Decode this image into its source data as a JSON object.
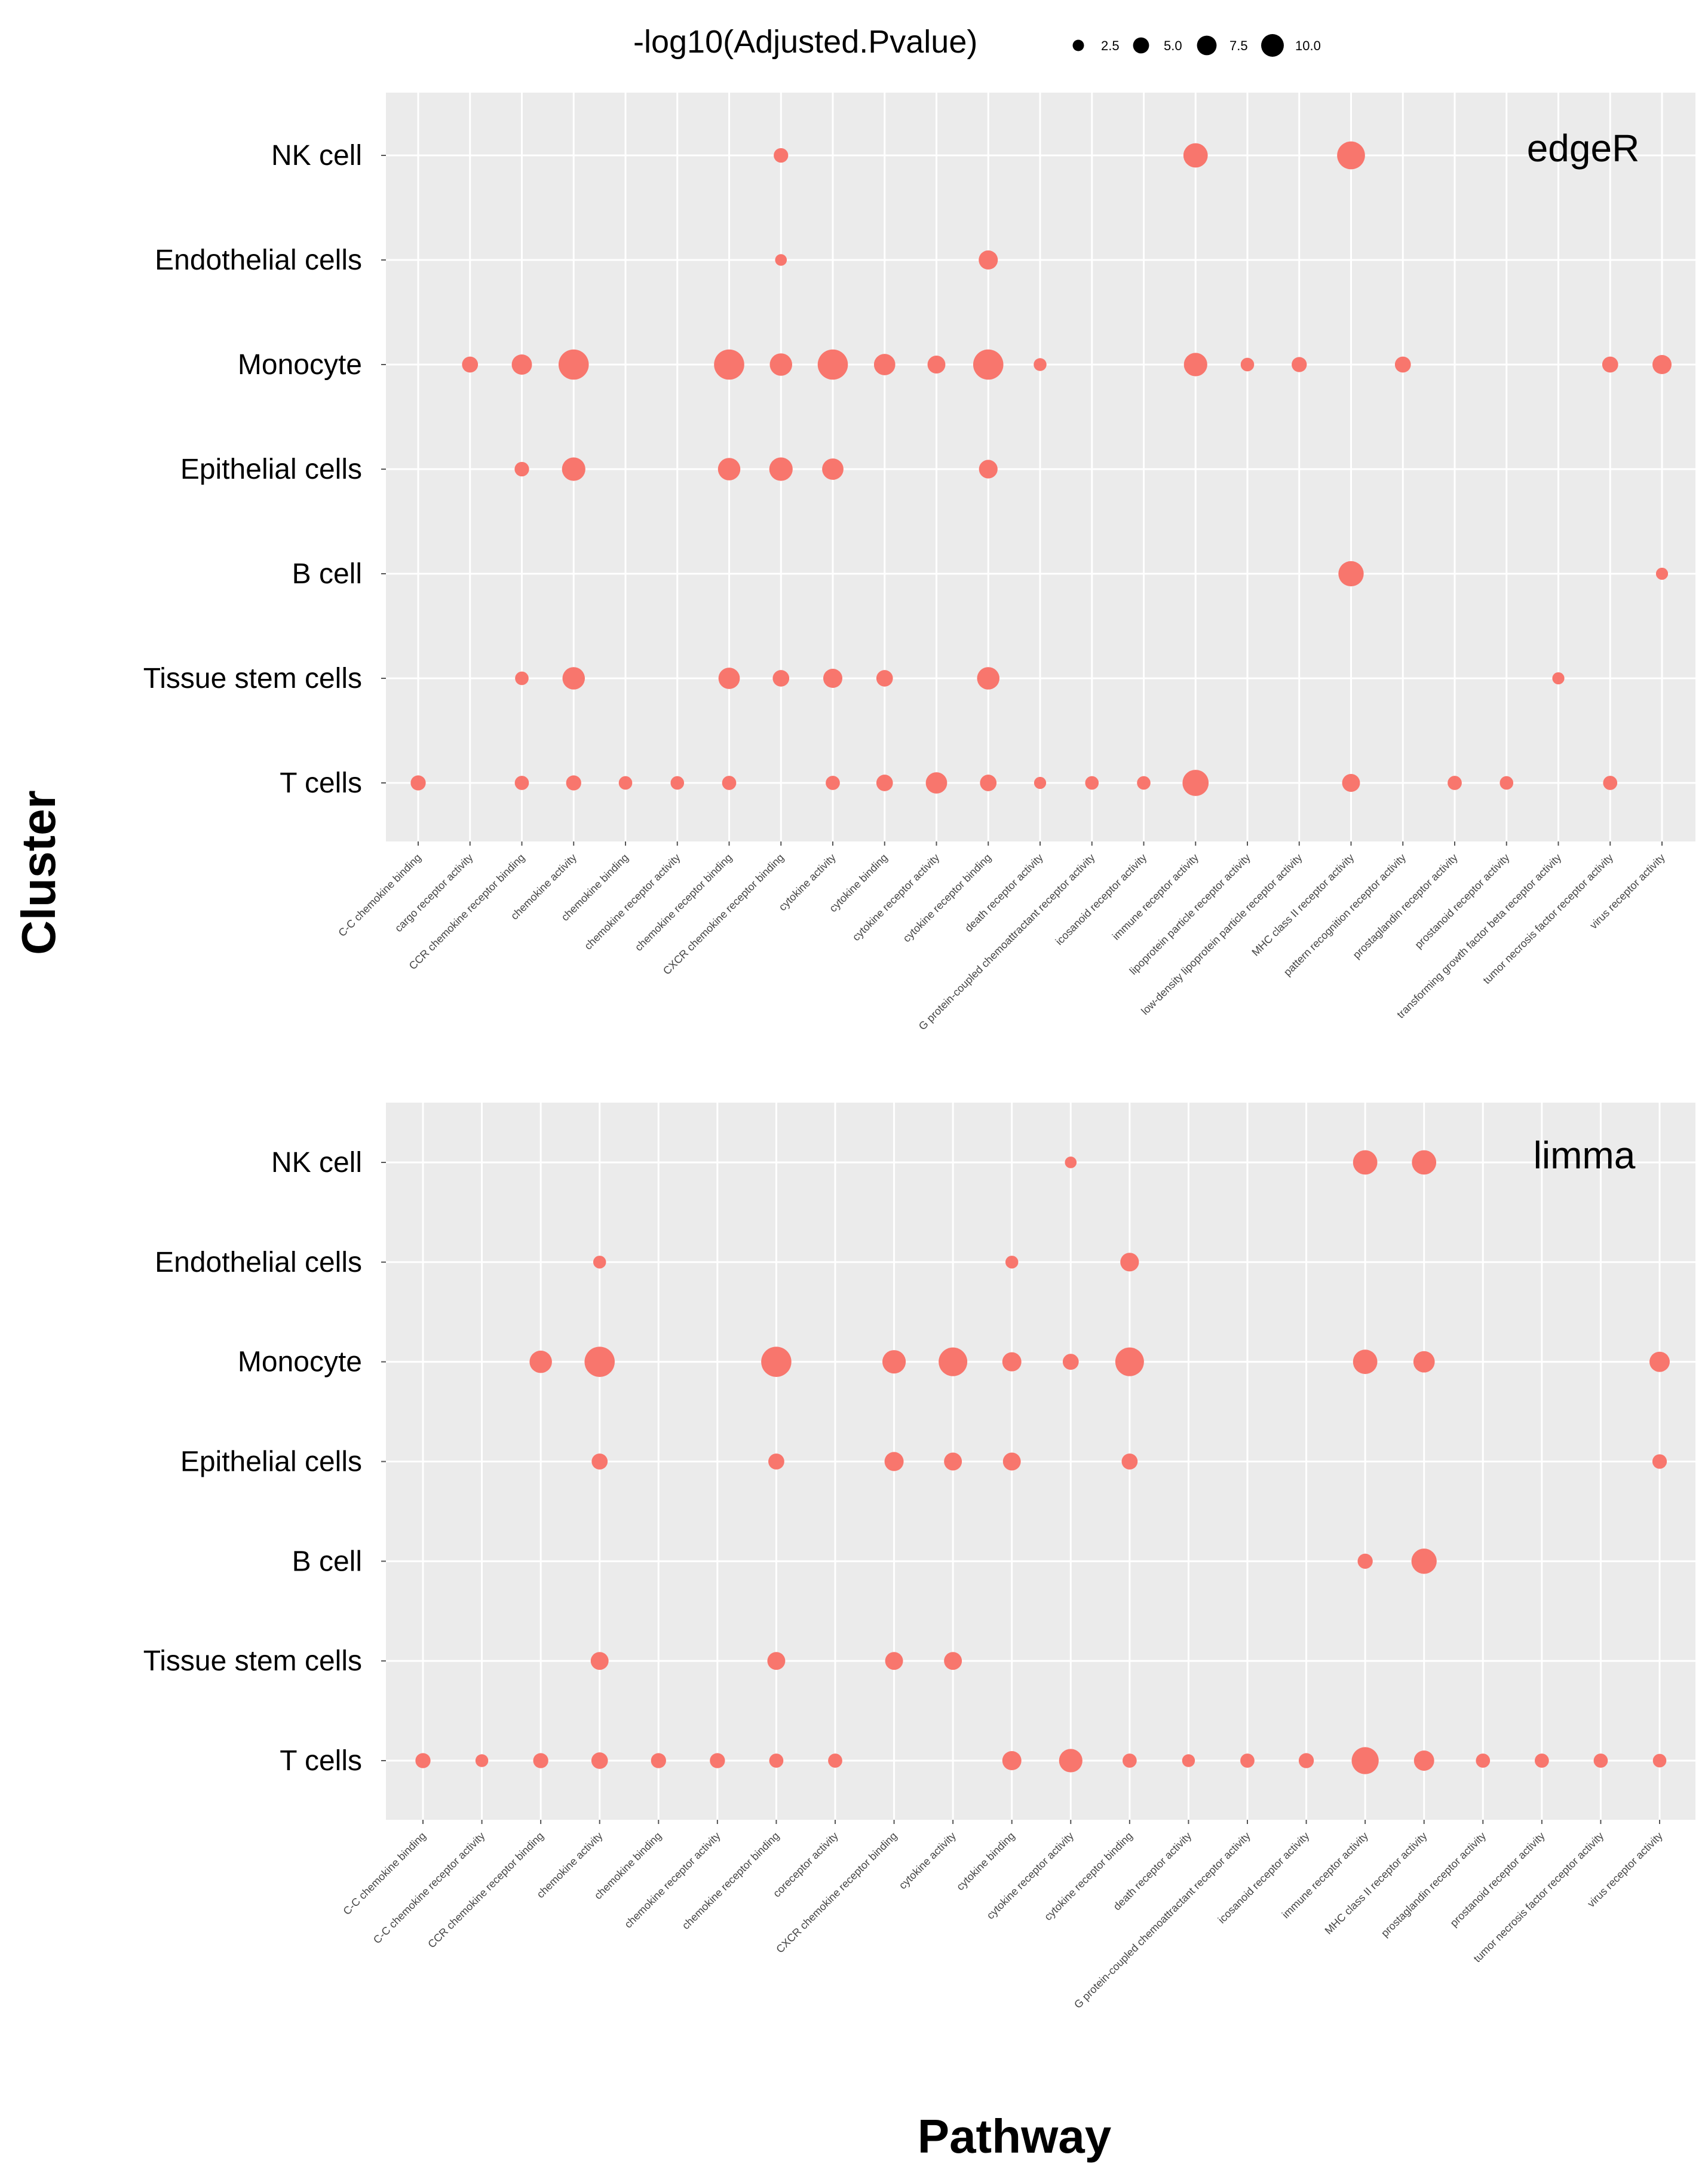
{
  "chart_data": {
    "type": "scatter",
    "x_axis_title": "Pathway",
    "y_axis_title": "Cluster",
    "legend": {
      "title": "-log10(Adjusted.Pvalue)",
      "placement": "top",
      "sizes": [
        2.5,
        5.0,
        7.5,
        10.0
      ],
      "labels": [
        "2.5",
        "5.0",
        "7.5",
        "10.0"
      ]
    },
    "point_color": "#F8766D",
    "panel_background": "#EBEBEB",
    "grid_color": "#FFFFFF",
    "clusters": [
      "NK cell",
      "Endothelial cells",
      "Monocyte",
      "Epithelial cells",
      "B cell",
      "Tissue stem cells",
      "T cells"
    ],
    "panels": [
      {
        "name": "edgeR",
        "pathways": [
          "C-C chemokine binding",
          "cargo receptor activity",
          "CCR chemokine receptor binding",
          "chemokine activity",
          "chemokine binding",
          "chemokine receptor activity",
          "chemokine receptor binding",
          "CXCR chemokine receptor binding",
          "cytokine activity",
          "cytokine binding",
          "cytokine receptor activity",
          "cytokine receptor binding",
          "death receptor activity",
          "G protein-coupled chemoattractant receptor activity",
          "icosanoid receptor activity",
          "immune receptor activity",
          "lipoprotein particle receptor activity",
          "low-density lipoprotein particle receptor activity",
          "MHC class II receptor activity",
          "pattern recognition receptor activity",
          "prostaglandin receptor activity",
          "prostanoid receptor activity",
          "transforming growth factor beta receptor activity",
          "tumor necrosis factor receptor activity",
          "virus receptor activity"
        ],
        "points": [
          {
            "pathway": "CXCR chemokine receptor binding",
            "cluster": "NK cell",
            "value": 2.3
          },
          {
            "pathway": "immune receptor activity",
            "cluster": "NK cell",
            "value": 6.5
          },
          {
            "pathway": "MHC class II receptor activity",
            "cluster": "NK cell",
            "value": 8.5
          },
          {
            "pathway": "CXCR chemokine receptor binding",
            "cluster": "Endothelial cells",
            "value": 1.5
          },
          {
            "pathway": "cytokine receptor binding",
            "cluster": "Endothelial cells",
            "value": 4.0
          },
          {
            "pathway": "cargo receptor activity",
            "cluster": "Monocyte",
            "value": 2.8
          },
          {
            "pathway": "CCR chemokine receptor binding",
            "cluster": "Monocyte",
            "value": 4.5
          },
          {
            "pathway": "chemokine activity",
            "cluster": "Monocyte",
            "value": 10.0
          },
          {
            "pathway": "chemokine receptor binding",
            "cluster": "Monocyte",
            "value": 10.0
          },
          {
            "pathway": "CXCR chemokine receptor binding",
            "cluster": "Monocyte",
            "value": 5.5
          },
          {
            "pathway": "cytokine activity",
            "cluster": "Monocyte",
            "value": 10.0
          },
          {
            "pathway": "cytokine binding",
            "cluster": "Monocyte",
            "value": 5.0
          },
          {
            "pathway": "cytokine receptor activity",
            "cluster": "Monocyte",
            "value": 3.5
          },
          {
            "pathway": "cytokine receptor binding",
            "cluster": "Monocyte",
            "value": 10.0
          },
          {
            "pathway": "death receptor activity",
            "cluster": "Monocyte",
            "value": 1.8
          },
          {
            "pathway": "immune receptor activity",
            "cluster": "Monocyte",
            "value": 6.0
          },
          {
            "pathway": "lipoprotein particle receptor activity",
            "cluster": "Monocyte",
            "value": 2.0
          },
          {
            "pathway": "low-density lipoprotein particle receptor activity",
            "cluster": "Monocyte",
            "value": 2.5
          },
          {
            "pathway": "pattern recognition receptor activity",
            "cluster": "Monocyte",
            "value": 2.8
          },
          {
            "pathway": "tumor necrosis factor receptor activity",
            "cluster": "Monocyte",
            "value": 2.8
          },
          {
            "pathway": "virus receptor activity",
            "cluster": "Monocyte",
            "value": 4.0
          },
          {
            "pathway": "CCR chemokine receptor binding",
            "cluster": "Epithelial cells",
            "value": 2.3
          },
          {
            "pathway": "chemokine activity",
            "cluster": "Epithelial cells",
            "value": 6.0
          },
          {
            "pathway": "chemokine receptor binding",
            "cluster": "Epithelial cells",
            "value": 5.5
          },
          {
            "pathway": "CXCR chemokine receptor binding",
            "cluster": "Epithelial cells",
            "value": 6.0
          },
          {
            "pathway": "cytokine activity",
            "cluster": "Epithelial cells",
            "value": 5.0
          },
          {
            "pathway": "cytokine receptor binding",
            "cluster": "Epithelial cells",
            "value": 3.8
          },
          {
            "pathway": "MHC class II receptor activity",
            "cluster": "B cell",
            "value": 7.0
          },
          {
            "pathway": "virus receptor activity",
            "cluster": "B cell",
            "value": 1.6
          },
          {
            "pathway": "CCR chemokine receptor binding",
            "cluster": "Tissue stem cells",
            "value": 2.0
          },
          {
            "pathway": "chemokine activity",
            "cluster": "Tissue stem cells",
            "value": 5.5
          },
          {
            "pathway": "chemokine receptor binding",
            "cluster": "Tissue stem cells",
            "value": 5.0
          },
          {
            "pathway": "CXCR chemokine receptor binding",
            "cluster": "Tissue stem cells",
            "value": 3.0
          },
          {
            "pathway": "cytokine activity",
            "cluster": "Tissue stem cells",
            "value": 4.0
          },
          {
            "pathway": "cytokine binding",
            "cluster": "Tissue stem cells",
            "value": 3.0
          },
          {
            "pathway": "cytokine receptor binding",
            "cluster": "Tissue stem cells",
            "value": 5.5
          },
          {
            "pathway": "transforming growth factor beta receptor activity",
            "cluster": "Tissue stem cells",
            "value": 1.6
          },
          {
            "pathway": "C-C chemokine binding",
            "cluster": "T cells",
            "value": 2.5
          },
          {
            "pathway": "CCR chemokine receptor binding",
            "cluster": "T cells",
            "value": 2.2
          },
          {
            "pathway": "chemokine activity",
            "cluster": "T cells",
            "value": 2.5
          },
          {
            "pathway": "chemokine binding",
            "cluster": "T cells",
            "value": 2.0
          },
          {
            "pathway": "chemokine receptor activity",
            "cluster": "T cells",
            "value": 2.0
          },
          {
            "pathway": "chemokine receptor binding",
            "cluster": "T cells",
            "value": 2.2
          },
          {
            "pathway": "cytokine activity",
            "cluster": "T cells",
            "value": 2.2
          },
          {
            "pathway": "cytokine binding",
            "cluster": "T cells",
            "value": 3.0
          },
          {
            "pathway": "cytokine receptor activity",
            "cluster": "T cells",
            "value": 5.0
          },
          {
            "pathway": "cytokine receptor binding",
            "cluster": "T cells",
            "value": 3.0
          },
          {
            "pathway": "death receptor activity",
            "cluster": "T cells",
            "value": 1.6
          },
          {
            "pathway": "G protein-coupled chemoattractant receptor activity",
            "cluster": "T cells",
            "value": 2.0
          },
          {
            "pathway": "icosanoid receptor activity",
            "cluster": "T cells",
            "value": 2.0
          },
          {
            "pathway": "immune receptor activity",
            "cluster": "T cells",
            "value": 7.5
          },
          {
            "pathway": "MHC class II receptor activity",
            "cluster": "T cells",
            "value": 3.5
          },
          {
            "pathway": "prostaglandin receptor activity",
            "cluster": "T cells",
            "value": 2.2
          },
          {
            "pathway": "prostanoid receptor activity",
            "cluster": "T cells",
            "value": 2.0
          },
          {
            "pathway": "tumor necrosis factor receptor activity",
            "cluster": "T cells",
            "value": 2.2
          }
        ]
      },
      {
        "name": "limma",
        "pathways": [
          "C-C chemokine binding",
          "C-C chemokine receptor activity",
          "CCR chemokine receptor binding",
          "chemokine activity",
          "chemokine binding",
          "chemokine receptor activity",
          "chemokine receptor binding",
          "coreceptor activity",
          "CXCR chemokine receptor binding",
          "cytokine activity",
          "cytokine binding",
          "cytokine receptor activity",
          "cytokine receptor binding",
          "death receptor activity",
          "G protein-coupled chemoattractant receptor activity",
          "icosanoid receptor activity",
          "immune receptor activity",
          "MHC class II receptor activity",
          "prostaglandin receptor activity",
          "prostanoid receptor activity",
          "tumor necrosis factor receptor activity",
          "virus receptor activity"
        ],
        "points": [
          {
            "pathway": "cytokine receptor activity",
            "cluster": "NK cell",
            "value": 1.5
          },
          {
            "pathway": "immune receptor activity",
            "cluster": "NK cell",
            "value": 6.5
          },
          {
            "pathway": "MHC class II receptor activity",
            "cluster": "NK cell",
            "value": 6.5
          },
          {
            "pathway": "chemokine activity",
            "cluster": "Endothelial cells",
            "value": 1.8
          },
          {
            "pathway": "cytokine binding",
            "cluster": "Endothelial cells",
            "value": 1.8
          },
          {
            "pathway": "cytokine receptor binding",
            "cluster": "Endothelial cells",
            "value": 3.8
          },
          {
            "pathway": "CCR chemokine receptor binding",
            "cluster": "Monocyte",
            "value": 5.5
          },
          {
            "pathway": "chemokine activity",
            "cluster": "Monocyte",
            "value": 10.0
          },
          {
            "pathway": "chemokine receptor binding",
            "cluster": "Monocyte",
            "value": 10.0
          },
          {
            "pathway": "CXCR chemokine receptor binding",
            "cluster": "Monocyte",
            "value": 6.0
          },
          {
            "pathway": "cytokine activity",
            "cluster": "Monocyte",
            "value": 9.0
          },
          {
            "pathway": "cytokine binding",
            "cluster": "Monocyte",
            "value": 4.0
          },
          {
            "pathway": "cytokine receptor activity",
            "cluster": "Monocyte",
            "value": 2.8
          },
          {
            "pathway": "cytokine receptor binding",
            "cluster": "Monocyte",
            "value": 9.0
          },
          {
            "pathway": "immune receptor activity",
            "cluster": "Monocyte",
            "value": 6.5
          },
          {
            "pathway": "MHC class II receptor activity",
            "cluster": "Monocyte",
            "value": 5.0
          },
          {
            "pathway": "virus receptor activity",
            "cluster": "Monocyte",
            "value": 4.5
          },
          {
            "pathway": "chemokine activity",
            "cluster": "Epithelial cells",
            "value": 2.8
          },
          {
            "pathway": "chemokine receptor binding",
            "cluster": "Epithelial cells",
            "value": 2.8
          },
          {
            "pathway": "CXCR chemokine receptor binding",
            "cluster": "Epithelial cells",
            "value": 4.0
          },
          {
            "pathway": "cytokine activity",
            "cluster": "Epithelial cells",
            "value": 3.5
          },
          {
            "pathway": "cytokine binding",
            "cluster": "Epithelial cells",
            "value": 3.5
          },
          {
            "pathway": "cytokine receptor binding",
            "cluster": "Epithelial cells",
            "value": 2.8
          },
          {
            "pathway": "virus receptor activity",
            "cluster": "Epithelial cells",
            "value": 2.3
          },
          {
            "pathway": "immune receptor activity",
            "cluster": "B cell",
            "value": 2.5
          },
          {
            "pathway": "MHC class II receptor activity",
            "cluster": "B cell",
            "value": 7.0
          },
          {
            "pathway": "chemokine activity",
            "cluster": "Tissue stem cells",
            "value": 3.5
          },
          {
            "pathway": "chemokine receptor binding",
            "cluster": "Tissue stem cells",
            "value": 3.5
          },
          {
            "pathway": "CXCR chemokine receptor binding",
            "cluster": "Tissue stem cells",
            "value": 3.5
          },
          {
            "pathway": "cytokine activity",
            "cluster": "Tissue stem cells",
            "value": 3.5
          },
          {
            "pathway": "C-C chemokine binding",
            "cluster": "T cells",
            "value": 2.5
          },
          {
            "pathway": "C-C chemokine receptor activity",
            "cluster": "T cells",
            "value": 1.8
          },
          {
            "pathway": "CCR chemokine receptor binding",
            "cluster": "T cells",
            "value": 2.5
          },
          {
            "pathway": "chemokine activity",
            "cluster": "T cells",
            "value": 3.0
          },
          {
            "pathway": "chemokine binding",
            "cluster": "T cells",
            "value": 2.5
          },
          {
            "pathway": "chemokine receptor activity",
            "cluster": "T cells",
            "value": 2.5
          },
          {
            "pathway": "chemokine receptor binding",
            "cluster": "T cells",
            "value": 2.2
          },
          {
            "pathway": "coreceptor activity",
            "cluster": "T cells",
            "value": 2.2
          },
          {
            "pathway": "cytokine binding",
            "cluster": "T cells",
            "value": 4.0
          },
          {
            "pathway": "cytokine receptor activity",
            "cluster": "T cells",
            "value": 6.0
          },
          {
            "pathway": "cytokine receptor binding",
            "cluster": "T cells",
            "value": 2.2
          },
          {
            "pathway": "death receptor activity",
            "cluster": "T cells",
            "value": 1.8
          },
          {
            "pathway": "G protein-coupled chemoattractant receptor activity",
            "cluster": "T cells",
            "value": 2.2
          },
          {
            "pathway": "icosanoid receptor activity",
            "cluster": "T cells",
            "value": 2.5
          },
          {
            "pathway": "immune receptor activity",
            "cluster": "T cells",
            "value": 8.0
          },
          {
            "pathway": "MHC class II receptor activity",
            "cluster": "T cells",
            "value": 4.5
          },
          {
            "pathway": "prostaglandin receptor activity",
            "cluster": "T cells",
            "value": 2.2
          },
          {
            "pathway": "prostanoid receptor activity",
            "cluster": "T cells",
            "value": 2.2
          },
          {
            "pathway": "tumor necrosis factor receptor activity",
            "cluster": "T cells",
            "value": 2.2
          },
          {
            "pathway": "virus receptor activity",
            "cluster": "T cells",
            "value": 2.0
          }
        ]
      }
    ]
  }
}
